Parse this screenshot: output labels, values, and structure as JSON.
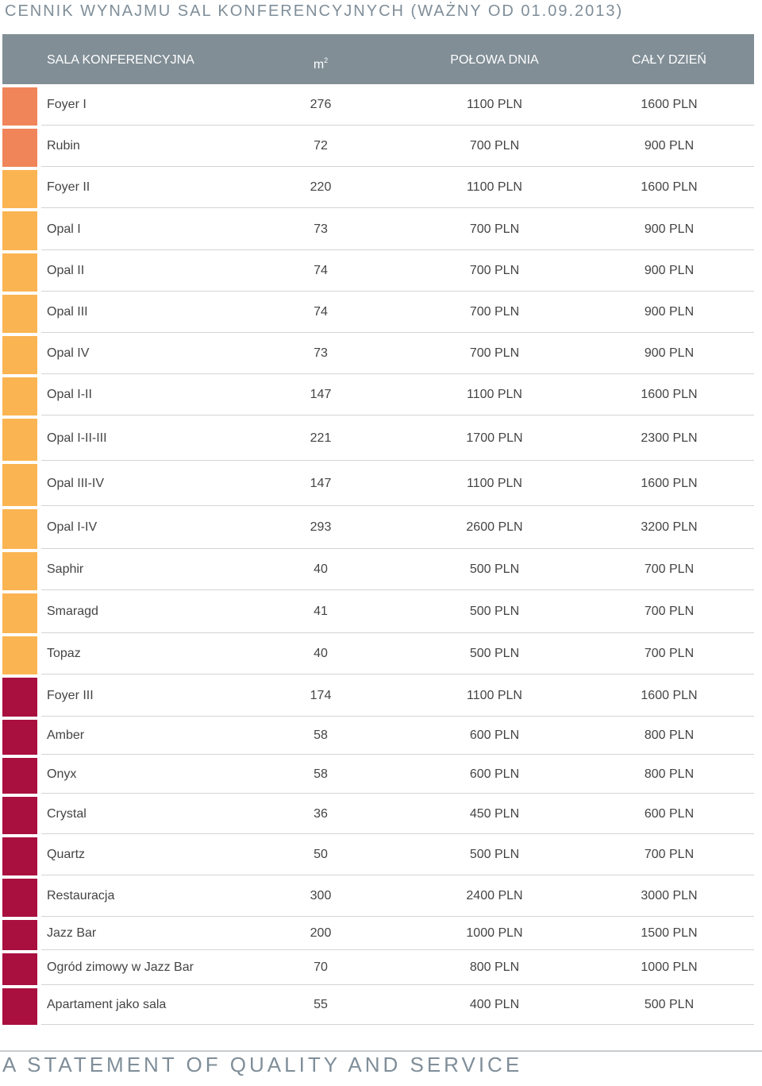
{
  "page_title": "CENNIK WYNAJMU SAL KONFERENCYJNYCH (WAŻNY OD 01.09.2013)",
  "table": {
    "headers": {
      "name": "SALA KONFERENCYJNA",
      "area": "m",
      "area_sup": "2",
      "half_day": "POŁOWA DNIA",
      "full_day": "CAŁY DZIEŃ"
    },
    "group_colors": {
      "coral": "#f0855a",
      "amber": "#fbb452",
      "crimson": "#a90f3f"
    },
    "rows": [
      {
        "name": "Foyer I",
        "area": "276",
        "half": "1100 PLN",
        "full": "1600 PLN",
        "color": "#f0855a"
      },
      {
        "name": "Rubin",
        "area": "72",
        "half": "700 PLN",
        "full": "900 PLN",
        "color": "#f0855a"
      },
      {
        "name": "Foyer II",
        "area": "220",
        "half": "1100 PLN",
        "full": "1600 PLN",
        "color": "#fbb452"
      },
      {
        "name": "Opal I",
        "area": "73",
        "half": "700 PLN",
        "full": "900 PLN",
        "color": "#fbb452"
      },
      {
        "name": "Opal II",
        "area": "74",
        "half": "700 PLN",
        "full": "900 PLN",
        "color": "#fbb452"
      },
      {
        "name": "Opal III",
        "area": "74",
        "half": "700 PLN",
        "full": "900 PLN",
        "color": "#fbb452"
      },
      {
        "name": "Opal IV",
        "area": "73",
        "half": "700 PLN",
        "full": "900 PLN",
        "color": "#fbb452"
      },
      {
        "name": "Opal I-II",
        "area": "147",
        "half": "1100 PLN",
        "full": "1600 PLN",
        "color": "#fbb452"
      },
      {
        "name": "Opal I-II-III",
        "area": "221",
        "half": "1700 PLN",
        "full": "2300 PLN",
        "color": "#fbb452"
      },
      {
        "name": "Opal III-IV",
        "area": "147",
        "half": "1100 PLN",
        "full": "1600 PLN",
        "color": "#fbb452"
      },
      {
        "name": "Opal I-IV",
        "area": "293",
        "half": "2600 PLN",
        "full": "3200 PLN",
        "color": "#fbb452"
      },
      {
        "name": "Saphir",
        "area": "40",
        "half": "500 PLN",
        "full": "700 PLN",
        "color": "#fbb452"
      },
      {
        "name": "Smaragd",
        "area": "41",
        "half": "500 PLN",
        "full": "700 PLN",
        "color": "#fbb452"
      },
      {
        "name": "Topaz",
        "area": "40",
        "half": "500 PLN",
        "full": "700 PLN",
        "color": "#fbb452"
      },
      {
        "name": "Foyer III",
        "area": "174",
        "half": "1100 PLN",
        "full": "1600 PLN",
        "color": "#a90f3f"
      },
      {
        "name": "Amber",
        "area": "58",
        "half": "600 PLN",
        "full": "800 PLN",
        "color": "#a90f3f"
      },
      {
        "name": "Onyx",
        "area": "58",
        "half": "600 PLN",
        "full": "800 PLN",
        "color": "#a90f3f"
      },
      {
        "name": "Crystal",
        "area": "36",
        "half": "450 PLN",
        "full": "600 PLN",
        "color": "#a90f3f"
      },
      {
        "name": "Quartz",
        "area": "50",
        "half": "500 PLN",
        "full": "700 PLN",
        "color": "#a90f3f"
      },
      {
        "name": "Restauracja",
        "area": "300",
        "half": "2400 PLN",
        "full": "3000 PLN",
        "color": "#a90f3f"
      },
      {
        "name": "Jazz Bar",
        "area": "200",
        "half": "1000 PLN",
        "full": "1500 PLN",
        "color": "#a90f3f"
      },
      {
        "name": "Ogród zimowy w Jazz Bar",
        "area": "70",
        "half": "800 PLN",
        "full": "1000 PLN",
        "color": "#a90f3f"
      },
      {
        "name": "Apartament jako sala",
        "area": "55",
        "half": "400 PLN",
        "full": "500 PLN",
        "color": "#a90f3f"
      }
    ]
  },
  "footer": {
    "tagline": "A STATEMENT OF QUALITY AND SERVICE"
  }
}
